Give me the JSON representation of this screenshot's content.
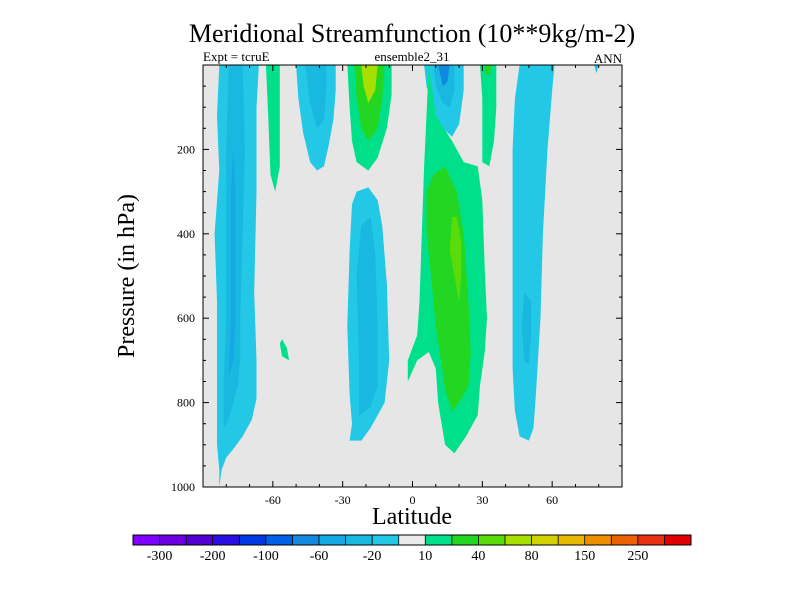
{
  "chart_data": {
    "type": "contour",
    "title": "Meridional Streamfunction (10**9kg/m-2)",
    "subtitle_left": "Expt = tcruE",
    "subtitle_center": "ensemble2_31",
    "subtitle_right": "ANN",
    "xlabel": "Latitude",
    "ylabel": "Pressure (in hPa)",
    "xlim": [
      -90,
      90
    ],
    "ylim": [
      1000,
      0
    ],
    "y_inverted": true,
    "x_ticks": [
      -60,
      -30,
      0,
      30,
      60
    ],
    "x_tick_labels": [
      "-60",
      "-30",
      "0",
      "30",
      "60"
    ],
    "y_ticks": [
      200,
      400,
      600,
      800,
      1000
    ],
    "y_tick_labels": [
      "200",
      "400",
      "600",
      "800",
      "1000"
    ],
    "background_color": "#e6e6e6",
    "contour_levels": [
      -300,
      -250,
      -200,
      -150,
      -100,
      -80,
      -60,
      -40,
      -20,
      -10,
      10,
      20,
      40,
      60,
      80,
      100,
      150,
      200,
      250,
      300
    ],
    "colorbar": {
      "colors": [
        "#7f00ff",
        "#6a00e0",
        "#5000d0",
        "#2a10e0",
        "#0038e6",
        "#0060e6",
        "#1288e0",
        "#15a8e6",
        "#18b8e0",
        "#22c8e6",
        "#ebebeb",
        "#00e08a",
        "#22d622",
        "#5adc0a",
        "#a8de00",
        "#d2d200",
        "#e6b800",
        "#ec9000",
        "#ec6200",
        "#e83010",
        "#e00000"
      ],
      "tick_labels": [
        "-300",
        "-200",
        "-100",
        "-60",
        "-20",
        "10",
        "40",
        "80",
        "150",
        "250"
      ],
      "tick_label_boundary_index": [
        1,
        3,
        5,
        7,
        9,
        11,
        13,
        15,
        17,
        19
      ]
    },
    "regions": [
      {
        "name": "southern-hadley-outer",
        "level": "-10..-20",
        "color": "#22c8e6",
        "points": [
          [
            -83,
            1000
          ],
          [
            -82,
            960
          ],
          [
            -80,
            930
          ],
          [
            -77,
            910
          ],
          [
            -73,
            880
          ],
          [
            -69,
            840
          ],
          [
            -67,
            790
          ],
          [
            -67,
            700
          ],
          [
            -68,
            540
          ],
          [
            -67,
            300
          ],
          [
            -67,
            100
          ],
          [
            -66,
            0
          ],
          [
            -69,
            0
          ],
          [
            -73,
            0
          ],
          [
            -77,
            0
          ],
          [
            -80,
            0
          ],
          [
            -83,
            0
          ],
          [
            -84,
            120
          ],
          [
            -83,
            250
          ],
          [
            -85,
            400
          ],
          [
            -84,
            560
          ],
          [
            -84,
            700
          ],
          [
            -84,
            800
          ],
          [
            -84,
            900
          ],
          [
            -83,
            960
          ]
        ]
      },
      {
        "name": "southern-hadley-mid",
        "level": "-20..-40",
        "color": "#18b8e0",
        "points": [
          [
            -81,
            860
          ],
          [
            -79,
            840
          ],
          [
            -77,
            800
          ],
          [
            -75,
            760
          ],
          [
            -74,
            700
          ],
          [
            -74,
            600
          ],
          [
            -73,
            400
          ],
          [
            -72,
            200
          ],
          [
            -73,
            0
          ],
          [
            -76,
            0
          ],
          [
            -79,
            0
          ],
          [
            -80,
            200
          ],
          [
            -80,
            400
          ],
          [
            -80,
            600
          ],
          [
            -81,
            740
          ]
        ]
      },
      {
        "name": "southern-hadley-core",
        "level": "-40..-60",
        "color": "#15a8e6",
        "points": [
          [
            -79,
            740
          ],
          [
            -77,
            700
          ],
          [
            -76,
            600
          ],
          [
            -76,
            500
          ],
          [
            -76,
            300
          ],
          [
            -77,
            200
          ],
          [
            -78,
            300
          ],
          [
            -78,
            500
          ],
          [
            -78,
            600
          ]
        ]
      },
      {
        "name": "ferrel-upper-cell-a",
        "level": "-10..-20",
        "color": "#22c8e6",
        "points": [
          [
            -50,
            0
          ],
          [
            -49,
            80
          ],
          [
            -47,
            160
          ],
          [
            -44,
            230
          ],
          [
            -41,
            250
          ],
          [
            -38,
            240
          ],
          [
            -36,
            190
          ],
          [
            -34,
            130
          ],
          [
            -33,
            60
          ],
          [
            -33,
            0
          ]
        ]
      },
      {
        "name": "ferrel-upper-cell-b-inner",
        "level": "-20..-40",
        "color": "#18b8e0",
        "points": [
          [
            -46,
            0
          ],
          [
            -44,
            90
          ],
          [
            -41,
            150
          ],
          [
            -38,
            130
          ],
          [
            -37,
            60
          ],
          [
            -37,
            0
          ]
        ]
      },
      {
        "name": "southern-narrow-green",
        "level": "10..20",
        "color": "#00e08a",
        "points": [
          [
            -63,
            0
          ],
          [
            -62,
            120
          ],
          [
            -61,
            260
          ],
          [
            -59,
            300
          ],
          [
            -57,
            240
          ],
          [
            -57,
            100
          ],
          [
            -57,
            0
          ]
        ]
      },
      {
        "name": "southern-small-green",
        "level": "10..20",
        "color": "#00e08a",
        "points": [
          [
            -57,
            660
          ],
          [
            -56,
            690
          ],
          [
            -53,
            700
          ],
          [
            -54,
            670
          ],
          [
            -56,
            650
          ]
        ]
      },
      {
        "name": "upper-green-plume",
        "level": "10..20",
        "color": "#00e08a",
        "points": [
          [
            -28,
            0
          ],
          [
            -27,
            100
          ],
          [
            -26,
            180
          ],
          [
            -24,
            230
          ],
          [
            -19,
            250
          ],
          [
            -15,
            220
          ],
          [
            -11,
            150
          ],
          [
            -9,
            70
          ],
          [
            -9,
            0
          ]
        ]
      },
      {
        "name": "upper-green-plume-mid",
        "level": "20..40",
        "color": "#22d622",
        "points": [
          [
            -25,
            0
          ],
          [
            -24,
            80
          ],
          [
            -22,
            150
          ],
          [
            -19,
            180
          ],
          [
            -15,
            150
          ],
          [
            -13,
            80
          ],
          [
            -12,
            0
          ]
        ]
      },
      {
        "name": "upper-green-plume-core",
        "level": "60..80",
        "color": "#a8de00",
        "points": [
          [
            -22,
            0
          ],
          [
            -21,
            50
          ],
          [
            -19,
            90
          ],
          [
            -16,
            60
          ],
          [
            -15,
            0
          ]
        ]
      },
      {
        "name": "tropical-cell-outer",
        "level": "-10..-20",
        "color": "#22c8e6",
        "points": [
          [
            -27,
            890
          ],
          [
            -26,
            850
          ],
          [
            -27,
            780
          ],
          [
            -28,
            620
          ],
          [
            -27,
            440
          ],
          [
            -26,
            330
          ],
          [
            -24,
            300
          ],
          [
            -19,
            290
          ],
          [
            -15,
            320
          ],
          [
            -13,
            380
          ],
          [
            -11,
            520
          ],
          [
            -10,
            700
          ],
          [
            -12,
            800
          ],
          [
            -16,
            840
          ],
          [
            -18,
            860
          ],
          [
            -22,
            890
          ]
        ]
      },
      {
        "name": "tropical-cell-mid",
        "level": "-20..-40",
        "color": "#18b8e0",
        "points": [
          [
            -23,
            830
          ],
          [
            -23,
            700
          ],
          [
            -24,
            500
          ],
          [
            -22,
            380
          ],
          [
            -18,
            360
          ],
          [
            -16,
            450
          ],
          [
            -15,
            620
          ],
          [
            -15,
            760
          ],
          [
            -18,
            810
          ]
        ]
      },
      {
        "name": "northern-upper-blue",
        "level": "-10..-20",
        "color": "#22c8e6",
        "points": [
          [
            5,
            0
          ],
          [
            6,
            50
          ],
          [
            9,
            110
          ],
          [
            13,
            150
          ],
          [
            17,
            170
          ],
          [
            20,
            140
          ],
          [
            22,
            60
          ],
          [
            22,
            0
          ]
        ]
      },
      {
        "name": "northern-upper-blue-inner",
        "level": "-20..-40",
        "color": "#18b8e0",
        "points": [
          [
            9,
            0
          ],
          [
            10,
            50
          ],
          [
            13,
            90
          ],
          [
            16,
            100
          ],
          [
            18,
            60
          ],
          [
            18,
            0
          ]
        ]
      },
      {
        "name": "northern-upper-blue-core",
        "level": "-40..-60",
        "color": "#1288e0",
        "points": [
          [
            11,
            0
          ],
          [
            13,
            50
          ],
          [
            15,
            40
          ],
          [
            16,
            0
          ]
        ]
      },
      {
        "name": "northern-hadley-outer",
        "level": "10..20",
        "color": "#00e08a",
        "points": [
          [
            7,
            0
          ],
          [
            6,
            120
          ],
          [
            5,
            240
          ],
          [
            4,
            400
          ],
          [
            3,
            560
          ],
          [
            2,
            640
          ],
          [
            -2,
            700
          ],
          [
            -2,
            750
          ],
          [
            2,
            700
          ],
          [
            7,
            680
          ],
          [
            10,
            720
          ],
          [
            11,
            800
          ],
          [
            14,
            900
          ],
          [
            18,
            920
          ],
          [
            23,
            880
          ],
          [
            28,
            830
          ],
          [
            29,
            760
          ],
          [
            31,
            680
          ],
          [
            32,
            600
          ],
          [
            31,
            480
          ],
          [
            30,
            320
          ],
          [
            28,
            240
          ],
          [
            22,
            230
          ],
          [
            17,
            180
          ],
          [
            10,
            120
          ],
          [
            8,
            40
          ]
        ]
      },
      {
        "name": "northern-hadley-mid",
        "level": "20..40",
        "color": "#22d622",
        "points": [
          [
            6,
            300
          ],
          [
            6,
            400
          ],
          [
            8,
            500
          ],
          [
            10,
            620
          ],
          [
            12,
            690
          ],
          [
            14,
            770
          ],
          [
            17,
            820
          ],
          [
            20,
            800
          ],
          [
            24,
            760
          ],
          [
            25,
            680
          ],
          [
            24,
            560
          ],
          [
            22,
            400
          ],
          [
            19,
            300
          ],
          [
            14,
            240
          ],
          [
            9,
            260
          ]
        ]
      },
      {
        "name": "northern-hadley-core",
        "level": "40..60",
        "color": "#5adc0a",
        "points": [
          [
            17,
            360
          ],
          [
            16,
            440
          ],
          [
            18,
            500
          ],
          [
            20,
            560
          ],
          [
            21,
            500
          ],
          [
            21,
            420
          ],
          [
            19,
            360
          ]
        ]
      },
      {
        "name": "northern-upper-green-b",
        "level": "10..20",
        "color": "#00e08a",
        "points": [
          [
            29,
            0
          ],
          [
            30,
            80
          ],
          [
            30,
            160
          ],
          [
            30,
            230
          ],
          [
            33,
            240
          ],
          [
            35,
            180
          ],
          [
            36,
            100
          ],
          [
            36,
            0
          ]
        ]
      },
      {
        "name": "northern-upper-green-b-inner",
        "level": "20..40",
        "color": "#22d622",
        "points": [
          [
            31,
            0
          ],
          [
            31,
            20
          ],
          [
            33,
            25
          ],
          [
            34,
            0
          ]
        ]
      },
      {
        "name": "northern-ferrel-outer",
        "level": "-10..-20",
        "color": "#22c8e6",
        "points": [
          [
            46,
            0
          ],
          [
            44,
            80
          ],
          [
            43,
            200
          ],
          [
            43,
            400
          ],
          [
            43,
            600
          ],
          [
            43,
            720
          ],
          [
            44,
            820
          ],
          [
            46,
            880
          ],
          [
            50,
            890
          ],
          [
            52,
            860
          ],
          [
            53,
            780
          ],
          [
            55,
            600
          ],
          [
            56,
            400
          ],
          [
            58,
            200
          ],
          [
            60,
            60
          ],
          [
            61,
            0
          ]
        ]
      },
      {
        "name": "northern-ferrel-inner",
        "level": "-20..-40",
        "color": "#18b8e0",
        "points": [
          [
            48,
            540
          ],
          [
            47,
            620
          ],
          [
            48,
            700
          ],
          [
            50,
            710
          ],
          [
            51,
            640
          ],
          [
            51,
            560
          ]
        ]
      },
      {
        "name": "northern-pole-speck",
        "level": "-10..-20",
        "color": "#22c8e6",
        "points": [
          [
            78,
            0
          ],
          [
            79,
            20
          ],
          [
            80,
            0
          ]
        ]
      }
    ]
  }
}
